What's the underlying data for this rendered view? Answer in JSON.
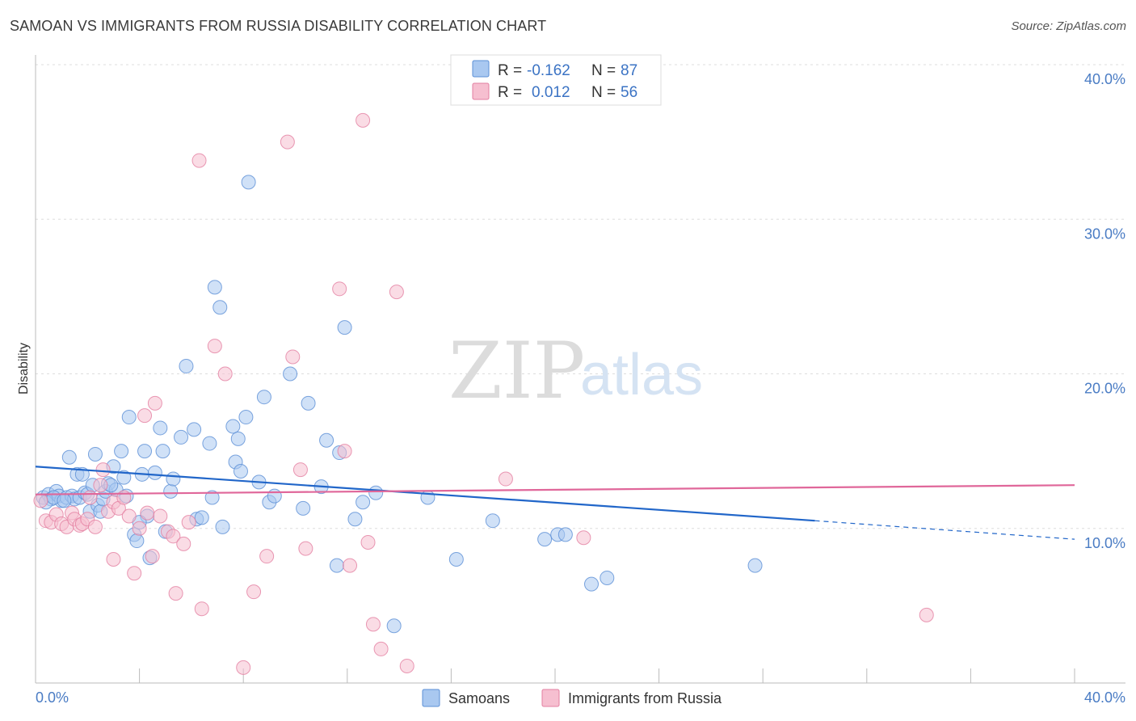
{
  "title": "SAMOAN VS IMMIGRANTS FROM RUSSIA DISABILITY CORRELATION CHART",
  "source": "Source: ZipAtlas.com",
  "watermark": {
    "zip": "ZIP",
    "atlas": "atlas"
  },
  "colors": {
    "samoans_fill": "#a9c8f0",
    "samoans_stroke": "#5b8fd6",
    "samoans_line": "#2166c9",
    "russia_fill": "#f6bfd0",
    "russia_stroke": "#e37fa1",
    "russia_line": "#e0679a",
    "grid": "#dddddd",
    "tick_text": "#4a7cc4"
  },
  "legend": {
    "rows": [
      {
        "r_label": "R =",
        "r_value": "-0.162",
        "n_label": "N =",
        "n_value": "87"
      },
      {
        "r_label": "R =",
        "r_value": "0.012",
        "n_label": "N =",
        "n_value": "56"
      }
    ]
  },
  "bottom_legend": [
    "Samoans",
    "Immigrants from Russia"
  ],
  "chart_data": {
    "type": "scatter",
    "ylabel": "Disability",
    "xlim": [
      0,
      40
    ],
    "ylim": [
      0,
      40
    ],
    "x_tick_labels": [
      "0.0%",
      "40.0%"
    ],
    "y_ticks": [
      10,
      20,
      30,
      40
    ],
    "y_tick_labels": [
      "10.0%",
      "20.0%",
      "30.0%",
      "40.0%"
    ],
    "grid": "horizontal dashed",
    "series": [
      {
        "name": "Samoans",
        "points": [
          [
            0.3,
            12.0
          ],
          [
            0.5,
            12.2
          ],
          [
            0.6,
            11.9
          ],
          [
            0.8,
            12.4
          ],
          [
            0.9,
            12.1
          ],
          [
            1.0,
            11.8
          ],
          [
            1.2,
            12.0
          ],
          [
            1.3,
            14.6
          ],
          [
            1.4,
            12.1
          ],
          [
            1.5,
            11.9
          ],
          [
            1.6,
            13.5
          ],
          [
            1.7,
            12.0
          ],
          [
            1.8,
            13.5
          ],
          [
            1.9,
            12.3
          ],
          [
            2.0,
            12.2
          ],
          [
            2.1,
            11.1
          ],
          [
            2.2,
            12.8
          ],
          [
            2.3,
            14.8
          ],
          [
            2.4,
            11.5
          ],
          [
            2.5,
            11.1
          ],
          [
            2.6,
            11.9
          ],
          [
            2.7,
            12.4
          ],
          [
            2.8,
            12.9
          ],
          [
            3.0,
            14.0
          ],
          [
            3.1,
            12.5
          ],
          [
            3.3,
            15.0
          ],
          [
            3.4,
            13.3
          ],
          [
            3.6,
            17.2
          ],
          [
            3.8,
            9.6
          ],
          [
            3.9,
            9.2
          ],
          [
            4.1,
            13.5
          ],
          [
            4.2,
            15.0
          ],
          [
            4.3,
            10.8
          ],
          [
            4.4,
            8.1
          ],
          [
            4.6,
            13.6
          ],
          [
            4.8,
            16.5
          ],
          [
            4.9,
            15.0
          ],
          [
            5.0,
            9.8
          ],
          [
            5.2,
            12.4
          ],
          [
            5.3,
            13.2
          ],
          [
            5.6,
            15.9
          ],
          [
            5.8,
            20.5
          ],
          [
            6.1,
            16.4
          ],
          [
            6.2,
            10.6
          ],
          [
            6.4,
            10.7
          ],
          [
            6.7,
            15.5
          ],
          [
            6.8,
            12.0
          ],
          [
            6.9,
            25.6
          ],
          [
            7.1,
            24.3
          ],
          [
            7.2,
            10.1
          ],
          [
            7.6,
            16.6
          ],
          [
            7.7,
            14.3
          ],
          [
            7.8,
            15.8
          ],
          [
            7.9,
            13.7
          ],
          [
            8.1,
            17.2
          ],
          [
            8.2,
            32.4
          ],
          [
            8.6,
            13.0
          ],
          [
            8.8,
            18.5
          ],
          [
            9.0,
            11.7
          ],
          [
            9.2,
            12.1
          ],
          [
            9.8,
            20.0
          ],
          [
            10.3,
            11.3
          ],
          [
            10.5,
            18.1
          ],
          [
            11.0,
            12.7
          ],
          [
            11.2,
            15.7
          ],
          [
            11.6,
            7.6
          ],
          [
            11.7,
            14.9
          ],
          [
            11.9,
            23.0
          ],
          [
            12.3,
            10.6
          ],
          [
            12.6,
            11.7
          ],
          [
            13.1,
            12.3
          ],
          [
            13.8,
            3.7
          ],
          [
            15.1,
            12.0
          ],
          [
            16.2,
            8.0
          ],
          [
            17.6,
            10.5
          ],
          [
            19.6,
            9.3
          ],
          [
            20.1,
            9.6
          ],
          [
            20.4,
            9.6
          ],
          [
            21.4,
            6.4
          ],
          [
            22.0,
            6.8
          ],
          [
            27.7,
            7.6
          ],
          [
            0.4,
            11.7
          ],
          [
            0.7,
            12.0
          ],
          [
            1.1,
            11.8
          ],
          [
            3.5,
            12.1
          ],
          [
            4.0,
            10.4
          ],
          [
            2.9,
            12.8
          ]
        ]
      },
      {
        "name": "Immigrants from Russia",
        "points": [
          [
            0.2,
            11.8
          ],
          [
            0.4,
            10.5
          ],
          [
            0.6,
            10.4
          ],
          [
            0.8,
            10.9
          ],
          [
            1.0,
            10.3
          ],
          [
            1.2,
            10.1
          ],
          [
            1.4,
            11.0
          ],
          [
            1.5,
            10.6
          ],
          [
            1.7,
            10.2
          ],
          [
            1.8,
            10.3
          ],
          [
            2.0,
            10.6
          ],
          [
            2.1,
            12.0
          ],
          [
            2.3,
            10.1
          ],
          [
            2.5,
            12.8
          ],
          [
            2.6,
            13.8
          ],
          [
            2.8,
            11.1
          ],
          [
            3.0,
            11.7
          ],
          [
            3.0,
            8.0
          ],
          [
            3.2,
            11.3
          ],
          [
            3.4,
            12.0
          ],
          [
            3.6,
            10.8
          ],
          [
            3.8,
            7.1
          ],
          [
            4.0,
            10.0
          ],
          [
            4.2,
            17.3
          ],
          [
            4.3,
            11.0
          ],
          [
            4.5,
            8.2
          ],
          [
            4.6,
            18.1
          ],
          [
            4.8,
            10.8
          ],
          [
            5.1,
            9.8
          ],
          [
            5.3,
            9.5
          ],
          [
            5.4,
            5.8
          ],
          [
            5.7,
            9.0
          ],
          [
            5.9,
            10.4
          ],
          [
            6.3,
            33.8
          ],
          [
            6.4,
            4.8
          ],
          [
            6.9,
            21.8
          ],
          [
            7.3,
            20.0
          ],
          [
            8.0,
            1.0
          ],
          [
            8.4,
            5.9
          ],
          [
            8.9,
            8.2
          ],
          [
            9.7,
            35.0
          ],
          [
            9.9,
            21.1
          ],
          [
            10.2,
            13.8
          ],
          [
            10.4,
            8.7
          ],
          [
            11.7,
            25.5
          ],
          [
            11.9,
            15.0
          ],
          [
            12.1,
            7.6
          ],
          [
            12.6,
            36.4
          ],
          [
            12.8,
            9.1
          ],
          [
            13.0,
            3.8
          ],
          [
            13.3,
            2.2
          ],
          [
            13.9,
            25.3
          ],
          [
            14.3,
            1.1
          ],
          [
            18.1,
            13.2
          ],
          [
            21.1,
            9.4
          ],
          [
            34.3,
            4.4
          ]
        ]
      }
    ],
    "trend_lines": [
      {
        "series": "Samoans",
        "from": [
          0,
          14.0
        ],
        "to": [
          30.0,
          10.5
        ],
        "dashed_to": [
          40.0,
          9.3
        ]
      },
      {
        "series": "Immigrants from Russia",
        "from": [
          0,
          12.2
        ],
        "to": [
          40.0,
          12.8
        ]
      }
    ]
  }
}
